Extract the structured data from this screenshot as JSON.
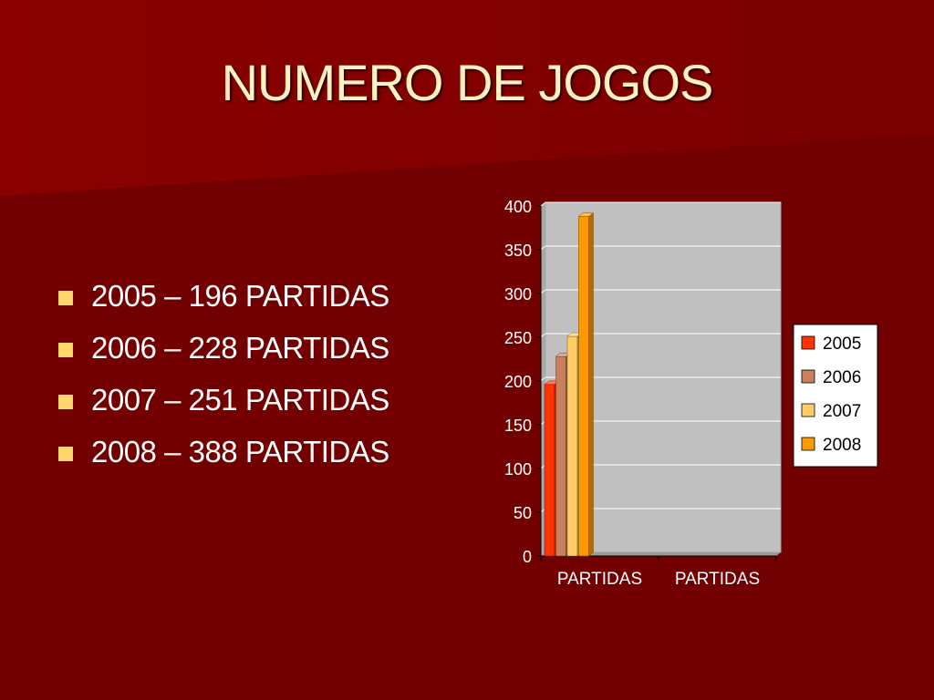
{
  "slide": {
    "title": "NUMERO DE JOGOS",
    "bullets": [
      "2005 – 196 PARTIDAS",
      "2006 – 228 PARTIDAS",
      "2007 – 251 PARTIDAS",
      "2008 – 388 PARTIDAS"
    ],
    "bullet_color": "#FFD66B",
    "background_color": "#720000",
    "title_color": "#FFF2C0"
  },
  "chart_data": {
    "type": "bar",
    "categories": [
      "PARTIDAS",
      "PARTIDAS"
    ],
    "series": [
      {
        "name": "2005",
        "values": [
          196,
          null
        ],
        "color": "#FF3300"
      },
      {
        "name": "2006",
        "values": [
          228,
          null
        ],
        "color": "#C8805E"
      },
      {
        "name": "2007",
        "values": [
          251,
          null
        ],
        "color": "#FFCC66"
      },
      {
        "name": "2008",
        "values": [
          388,
          null
        ],
        "color": "#FF9900"
      }
    ],
    "ylim": [
      0,
      400
    ],
    "yticks": [
      "0",
      "50",
      "100",
      "150",
      "200",
      "250",
      "300",
      "350",
      "400"
    ],
    "grid": true,
    "plot_background": "#C0C0C0",
    "legend_position": "right",
    "style": "3d"
  }
}
